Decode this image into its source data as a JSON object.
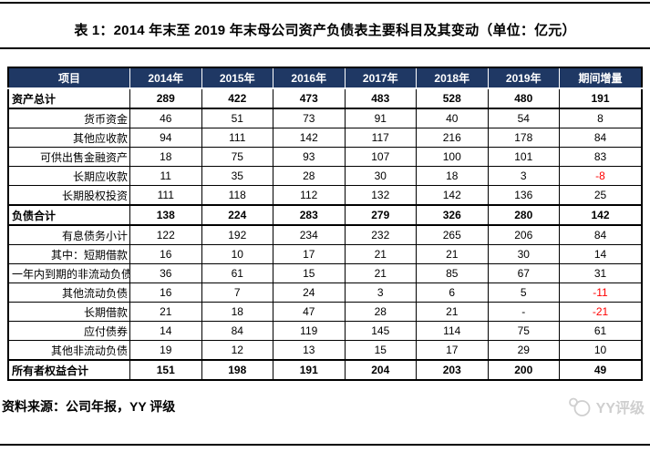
{
  "title": "表 1：2014 年末至 2019 年末母公司资产负债表主要科目及其变动（单位：亿元）",
  "source_note": "资料来源：公司年报，YY 评级",
  "watermark_text": "YY评级",
  "colors": {
    "header_bg": "#1F3864",
    "header_text": "#FFFFFF",
    "negative_text": "#FF0000",
    "watermark_gray": "#CFCFCF"
  },
  "table": {
    "columns": [
      "项目",
      "2014年",
      "2015年",
      "2016年",
      "2017年",
      "2018年",
      "2019年",
      "期间增量"
    ],
    "rows": [
      {
        "label": "资产总计",
        "style": "total",
        "values": [
          "289",
          "422",
          "473",
          "483",
          "528",
          "480",
          "191"
        ]
      },
      {
        "label": "货币资金",
        "style": "sub",
        "values": [
          "46",
          "51",
          "73",
          "91",
          "40",
          "54",
          "8"
        ]
      },
      {
        "label": "其他应收款",
        "style": "sub",
        "values": [
          "94",
          "111",
          "142",
          "117",
          "216",
          "178",
          "84"
        ]
      },
      {
        "label": "可供出售金融资产",
        "style": "sub",
        "values": [
          "18",
          "75",
          "93",
          "107",
          "100",
          "101",
          "83"
        ]
      },
      {
        "label": "长期应收款",
        "style": "sub",
        "values": [
          "11",
          "35",
          "28",
          "30",
          "18",
          "3",
          "-8"
        ]
      },
      {
        "label": "长期股权投资",
        "style": "sub",
        "values": [
          "111",
          "118",
          "112",
          "132",
          "142",
          "136",
          "25"
        ]
      },
      {
        "label": "负债合计",
        "style": "total",
        "values": [
          "138",
          "224",
          "283",
          "279",
          "326",
          "280",
          "142"
        ]
      },
      {
        "label": "有息债务小计",
        "style": "sub",
        "values": [
          "122",
          "192",
          "234",
          "232",
          "265",
          "206",
          "84"
        ]
      },
      {
        "label": "其中：短期借款",
        "style": "sub",
        "values": [
          "16",
          "10",
          "17",
          "21",
          "21",
          "30",
          "14"
        ]
      },
      {
        "label": "一年内到期的非流动负债",
        "style": "sub",
        "values": [
          "36",
          "61",
          "15",
          "21",
          "85",
          "67",
          "31"
        ]
      },
      {
        "label": "其他流动负债",
        "style": "sub",
        "values": [
          "16",
          "7",
          "24",
          "3",
          "6",
          "5",
          "-11"
        ]
      },
      {
        "label": "长期借款",
        "style": "sub",
        "values": [
          "21",
          "18",
          "47",
          "28",
          "21",
          "-",
          "-21"
        ]
      },
      {
        "label": "应付债券",
        "style": "sub",
        "values": [
          "14",
          "84",
          "119",
          "145",
          "114",
          "75",
          "61"
        ]
      },
      {
        "label": "其他非流动负债",
        "style": "sub",
        "values": [
          "19",
          "12",
          "13",
          "15",
          "17",
          "29",
          "10"
        ]
      },
      {
        "label": "所有者权益合计",
        "style": "total",
        "values": [
          "151",
          "198",
          "191",
          "204",
          "203",
          "200",
          "49"
        ]
      }
    ]
  }
}
